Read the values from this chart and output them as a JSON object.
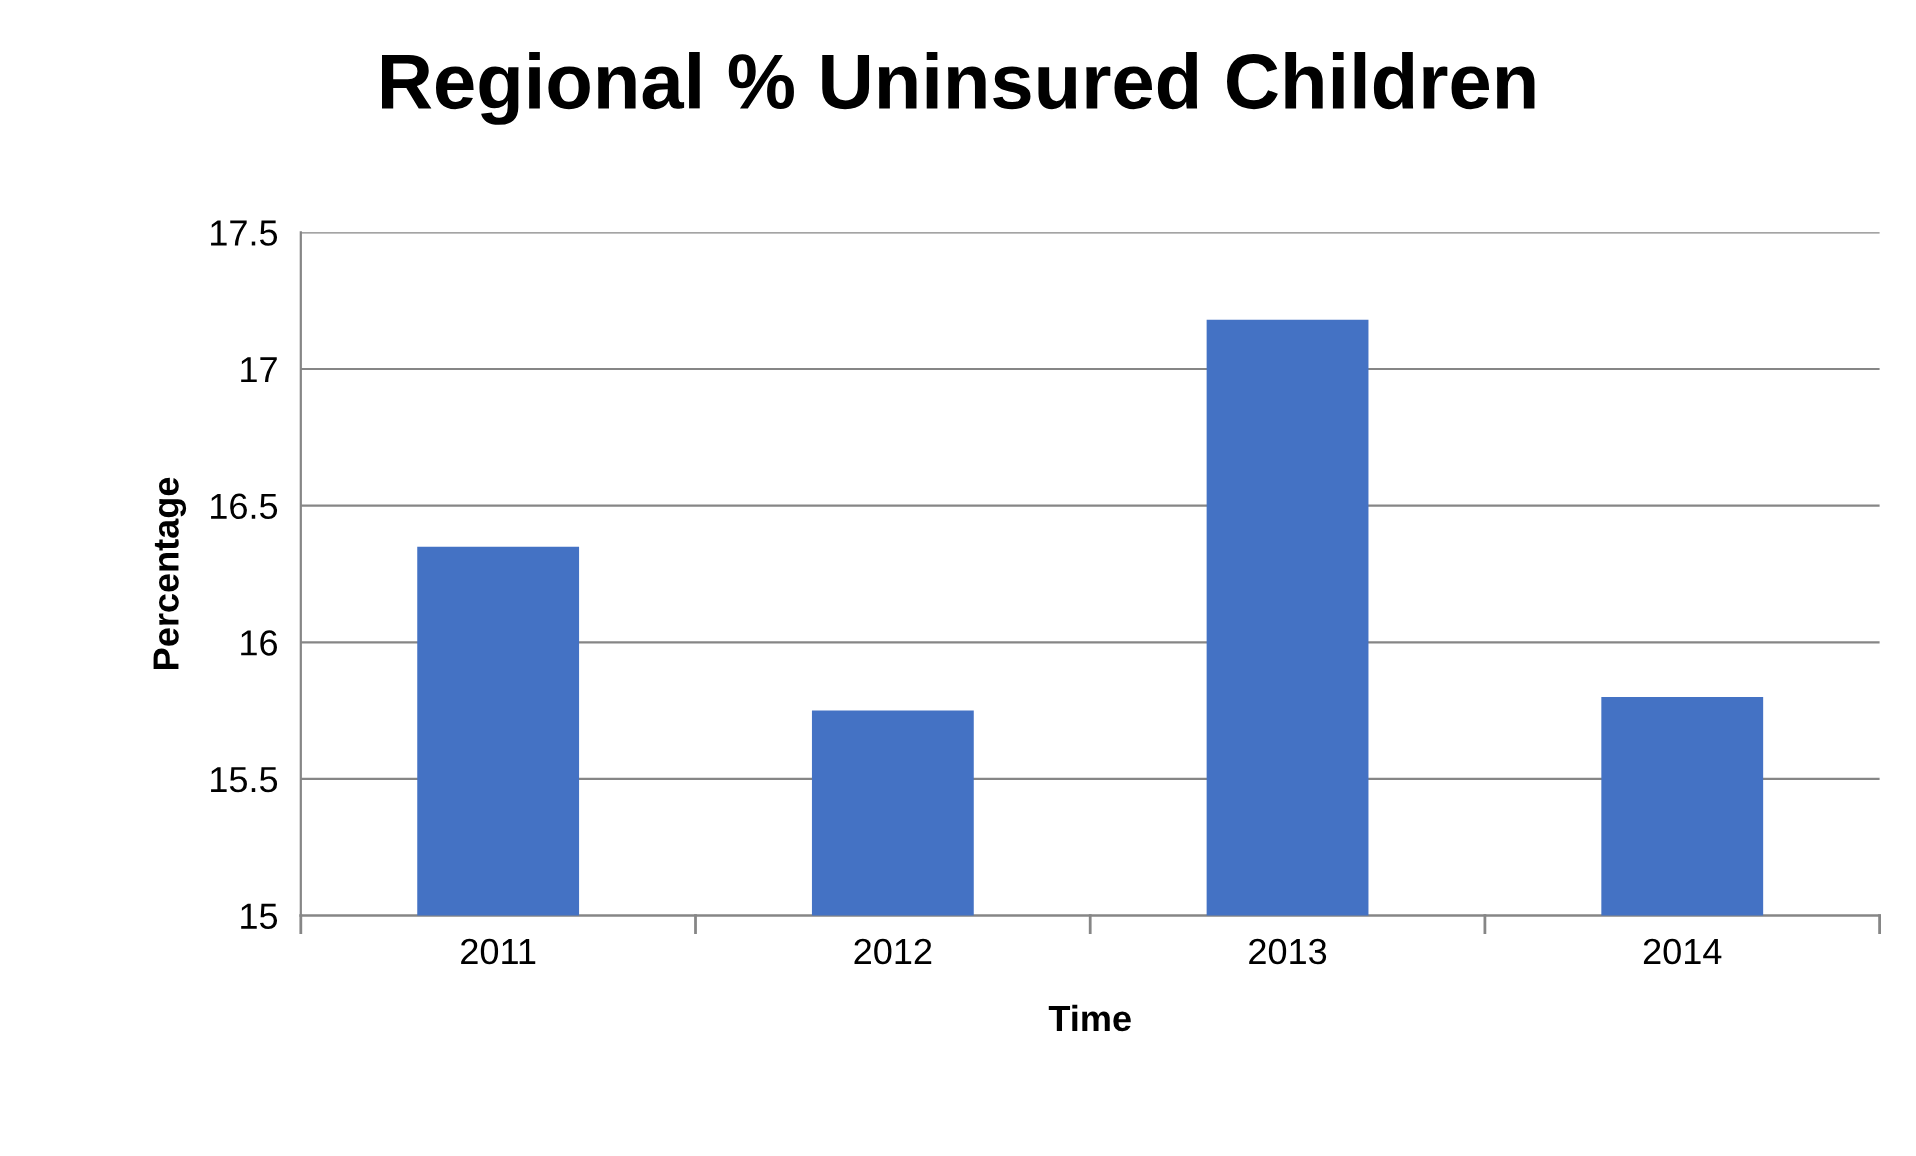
{
  "chart_data": {
    "type": "bar",
    "title": "Regional % Uninsured Children",
    "xlabel": "Time",
    "ylabel": "Percentage",
    "categories": [
      "2011",
      "2012",
      "2013",
      "2014"
    ],
    "values": [
      16.35,
      15.75,
      17.18,
      15.8
    ],
    "color": "#4472c4",
    "ylim": [
      15,
      17.5
    ],
    "yticks": [
      15,
      {
        "value": 15.5,
        "label": "15.5"
      },
      16,
      {
        "value": 16.5,
        "label": "16.5"
      },
      17,
      {
        "value": 17.5,
        "label": "17.5"
      }
    ],
    "grid": "y",
    "legend": false
  }
}
